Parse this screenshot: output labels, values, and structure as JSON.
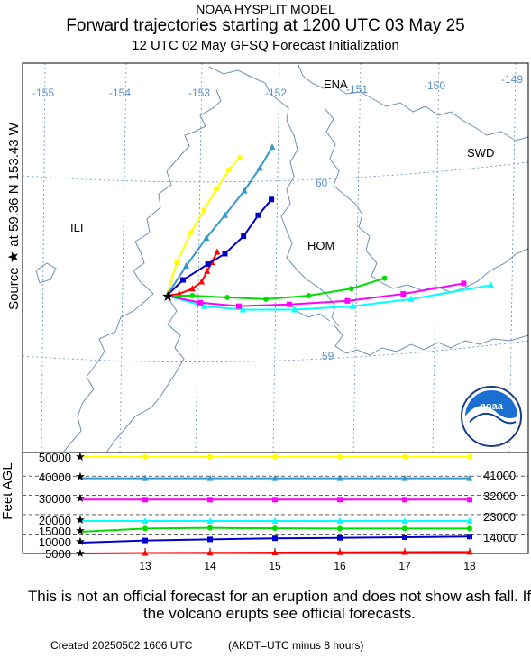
{
  "header": {
    "line1": "NOAA HYSPLIT MODEL",
    "line2": "Forward trajectories starting at 1200 UTC 03 May 25",
    "line3": "12 UTC 02 May    GFSQ  Forecast Initialization"
  },
  "source": {
    "prefix": "Source",
    "star": "★",
    "at": "at",
    "lat": "59.36 N",
    "lon": "153.43 W"
  },
  "map": {
    "lon_labels": [
      "-155",
      "-154",
      "-153",
      "-152",
      "-151",
      "-150",
      "-149"
    ],
    "lat_labels": [
      "60",
      "59"
    ],
    "places": [
      "ENA",
      "SWD",
      "ILI",
      "HOM"
    ],
    "colors": {
      "graticule": "#5b8fc8",
      "coast": "#6f8fb5"
    },
    "logo_icon": "noaa-logo-icon",
    "logo_text": "noaa"
  },
  "height_panel": {
    "axis_title": "Feet AGL",
    "left_ticks": [
      "50000",
      "40000",
      "30000",
      "20000",
      "15000",
      "10000",
      "5000"
    ],
    "right_ticks": [
      "41000",
      "32000",
      "23000",
      "14000"
    ],
    "time_ticks": [
      "13",
      "14",
      "15",
      "16",
      "17",
      "18"
    ]
  },
  "chart_data": {
    "type": "line",
    "xlabel": "",
    "ylabel": "Feet AGL",
    "x": [
      12,
      13,
      14,
      15,
      16,
      17,
      18
    ],
    "series": [
      {
        "color": "#ff0000",
        "marker": "triangle",
        "height_ft": [
          5000,
          5200,
          5300,
          5400,
          5500,
          5600,
          5700
        ]
      },
      {
        "color": "#0000cc",
        "marker": "square",
        "height_ft": [
          10000,
          11000,
          11500,
          12000,
          12200,
          12500,
          12800
        ]
      },
      {
        "color": "#00dd00",
        "marker": "circle",
        "height_ft": [
          15000,
          16500,
          16800,
          16600,
          16500,
          16500,
          16500
        ]
      },
      {
        "color": "#00ffff",
        "marker": "triangle",
        "height_ft": [
          20000,
          20000,
          20000,
          20000,
          20000,
          20000,
          20000
        ]
      },
      {
        "color": "#ff00ff",
        "marker": "square",
        "height_ft": [
          30000,
          30000,
          30000,
          30000,
          30000,
          30000,
          30000
        ]
      },
      {
        "color": "#3399cc",
        "marker": "triangle",
        "height_ft": [
          40000,
          40000,
          40000,
          40000,
          40000,
          40000,
          40000
        ]
      },
      {
        "color": "#ffff00",
        "marker": "circle",
        "height_ft": [
          50000,
          50000,
          50000,
          50000,
          50000,
          50000,
          50000
        ]
      }
    ],
    "tracks": [
      {
        "color": "#ff0000",
        "marker": "triangle",
        "lon": [
          -153.43,
          -153.27,
          -153.1,
          -152.98,
          -152.91,
          -152.85,
          -152.78
        ],
        "lat": [
          59.36,
          59.37,
          59.4,
          59.44,
          59.5,
          59.55,
          59.61
        ]
      },
      {
        "color": "#0000cc",
        "marker": "square",
        "lon": [
          -153.43,
          -153.22,
          -152.9,
          -152.68,
          -152.44,
          -152.25,
          -152.08
        ],
        "lat": [
          59.36,
          59.45,
          59.54,
          59.6,
          59.7,
          59.82,
          59.91
        ]
      },
      {
        "color": "#00dd00",
        "marker": "circle",
        "lon": [
          -153.43,
          -153.1,
          -152.65,
          -152.15,
          -151.6,
          -151.05,
          -150.62
        ],
        "lat": [
          59.36,
          59.36,
          59.35,
          59.34,
          59.36,
          59.4,
          59.46
        ]
      },
      {
        "color": "#00ffff",
        "marker": "triangle",
        "lon": [
          -153.43,
          -152.95,
          -152.45,
          -151.78,
          -151.03,
          -150.28,
          -149.25
        ],
        "lat": [
          59.36,
          59.3,
          59.28,
          59.28,
          59.3,
          59.34,
          59.42
        ]
      },
      {
        "color": "#ff00ff",
        "marker": "square",
        "lon": [
          -153.43,
          -153.0,
          -152.5,
          -151.85,
          -151.1,
          -150.38,
          -149.6
        ],
        "lat": [
          59.36,
          59.32,
          59.3,
          59.31,
          59.33,
          59.37,
          59.43
        ]
      },
      {
        "color": "#3399cc",
        "marker": "triangle",
        "lon": [
          -153.43,
          -153.18,
          -152.92,
          -152.68,
          -152.43,
          -152.23,
          -152.07
        ],
        "lat": [
          59.36,
          59.53,
          59.69,
          59.82,
          59.96,
          60.09,
          60.21
        ]
      },
      {
        "color": "#ffff00",
        "marker": "circle",
        "lon": [
          -153.43,
          -153.3,
          -153.12,
          -152.95,
          -152.79,
          -152.63,
          -152.49
        ],
        "lat": [
          59.36,
          59.55,
          59.72,
          59.85,
          59.97,
          60.08,
          60.15
        ]
      }
    ]
  },
  "footer": {
    "disclaimer": "This is not an official forecast for an eruption and does not show ash fall. If the volcano erupts see official forecasts.",
    "created": "Created 20250502 1606 UTC",
    "akdt": "(AKDT=UTC minus 8 hours)"
  }
}
